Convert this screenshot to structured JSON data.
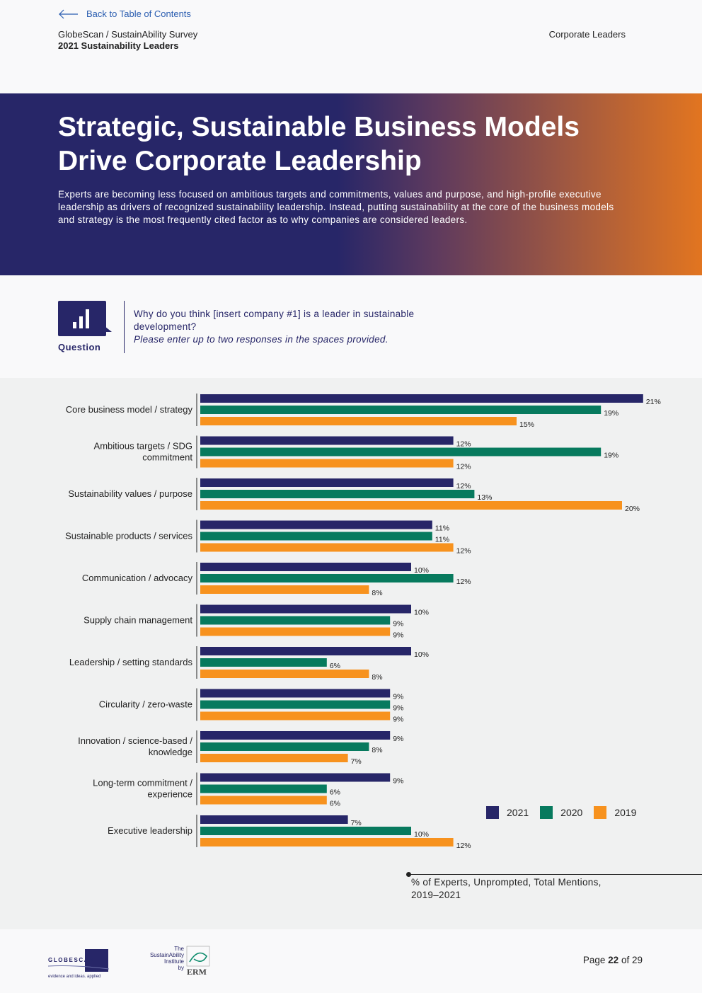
{
  "nav": {
    "back_label": "Back to Table of Contents"
  },
  "header": {
    "survey": "GlobeScan / SustainAbility Survey",
    "report": "2021 Sustainability Leaders",
    "section": "Corporate Leaders"
  },
  "hero": {
    "title_line1": "Strategic, Sustainable Business Models",
    "title_line2": "Drive Corporate Leadership",
    "body": "Experts are becoming less focused on ambitious targets and commitments, values and purpose, and high-profile executive leadership as drivers of recognized sustainability leadership. Instead, putting sustainability at the core of the business models and strategy is the most frequently cited factor as to why companies are considered leaders."
  },
  "question": {
    "label": "Question",
    "text": "Why do you think [insert company #1] is a leader in sustainable development?",
    "instruction": "Please enter up to two responses in the spaces provided."
  },
  "colors": {
    "y2021": "#272668",
    "y2020": "#077a5e",
    "y2019": "#f7921e"
  },
  "chart_data": {
    "type": "bar",
    "orientation": "horizontal",
    "categories": [
      [
        "Core business model / strategy"
      ],
      [
        "Ambitious targets / SDG",
        "commitment"
      ],
      [
        "Sustainability values / purpose"
      ],
      [
        "Sustainable products / services"
      ],
      [
        "Communication / advocacy"
      ],
      [
        "Supply chain management"
      ],
      [
        "Leadership / setting standards"
      ],
      [
        "Circularity / zero-waste"
      ],
      [
        "Innovation / science-based /",
        "knowledge"
      ],
      [
        "Long-term commitment /",
        "experience"
      ],
      [
        "Executive leadership"
      ]
    ],
    "series": [
      {
        "name": "2021",
        "values": [
          21,
          12,
          12,
          11,
          10,
          10,
          10,
          9,
          9,
          9,
          7
        ]
      },
      {
        "name": "2020",
        "values": [
          19,
          19,
          13,
          11,
          12,
          9,
          6,
          9,
          8,
          6,
          10
        ]
      },
      {
        "name": "2019",
        "values": [
          15,
          12,
          20,
          12,
          8,
          9,
          8,
          9,
          7,
          6,
          12
        ]
      }
    ],
    "value_suffix": "%",
    "xlim": [
      0,
      21
    ],
    "legend_position": "bottom-right"
  },
  "note": {
    "line1": "% of Experts, Unprompted, Total Mentions,",
    "line2": "2019–2021"
  },
  "footer": {
    "globescan_logo": "GLOBESCAN",
    "globescan_tagline": "evidence and ideas. applied",
    "si_logo_lines": [
      "The",
      "SustainAbility",
      "Institute",
      "by"
    ],
    "erm_logo": "ERM",
    "page_prefix": "Page",
    "page_current": "22",
    "page_of": "of 29"
  }
}
